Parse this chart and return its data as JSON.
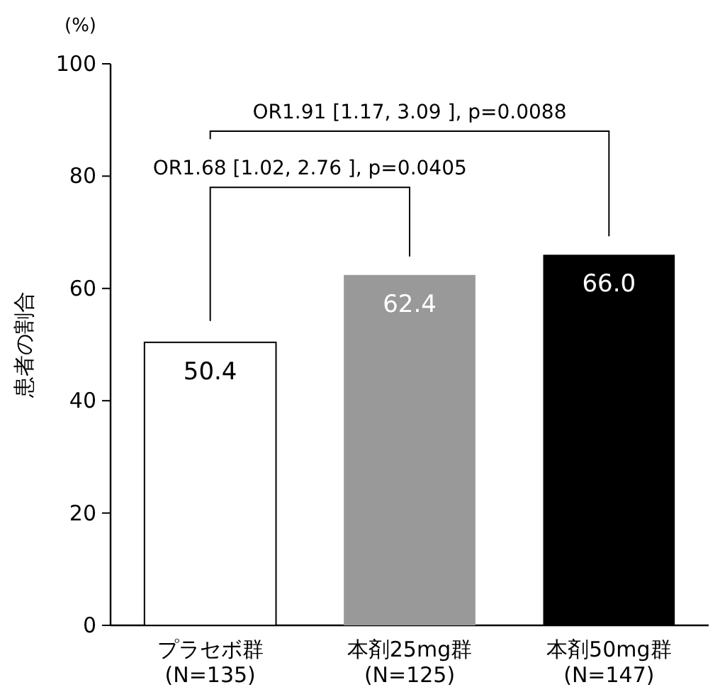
{
  "chart_data": {
    "type": "bar",
    "ylabel": "患者の割合",
    "annotations": [
      "(%)",
      "OR1.68 [1.02, 2.76 ], p=0.0405",
      "OR1.91 [1.17, 3.09 ], p=0.0088"
    ],
    "categories": [
      "プラセボ群\n(N=135)",
      "本剤25mg群\n(N=125)",
      "本剤50mg群\n(N=147)"
    ],
    "values": [
      50.4,
      62.4,
      66.0
    ],
    "colors": [
      "#ffffff",
      "#999999",
      "#000000"
    ],
    "value_labels": [
      "50.4",
      "62.4",
      "66.0"
    ],
    "ylim": [
      0,
      100
    ],
    "yticks": [
      0,
      20,
      40,
      60,
      80,
      100
    ],
    "grid": false
  }
}
